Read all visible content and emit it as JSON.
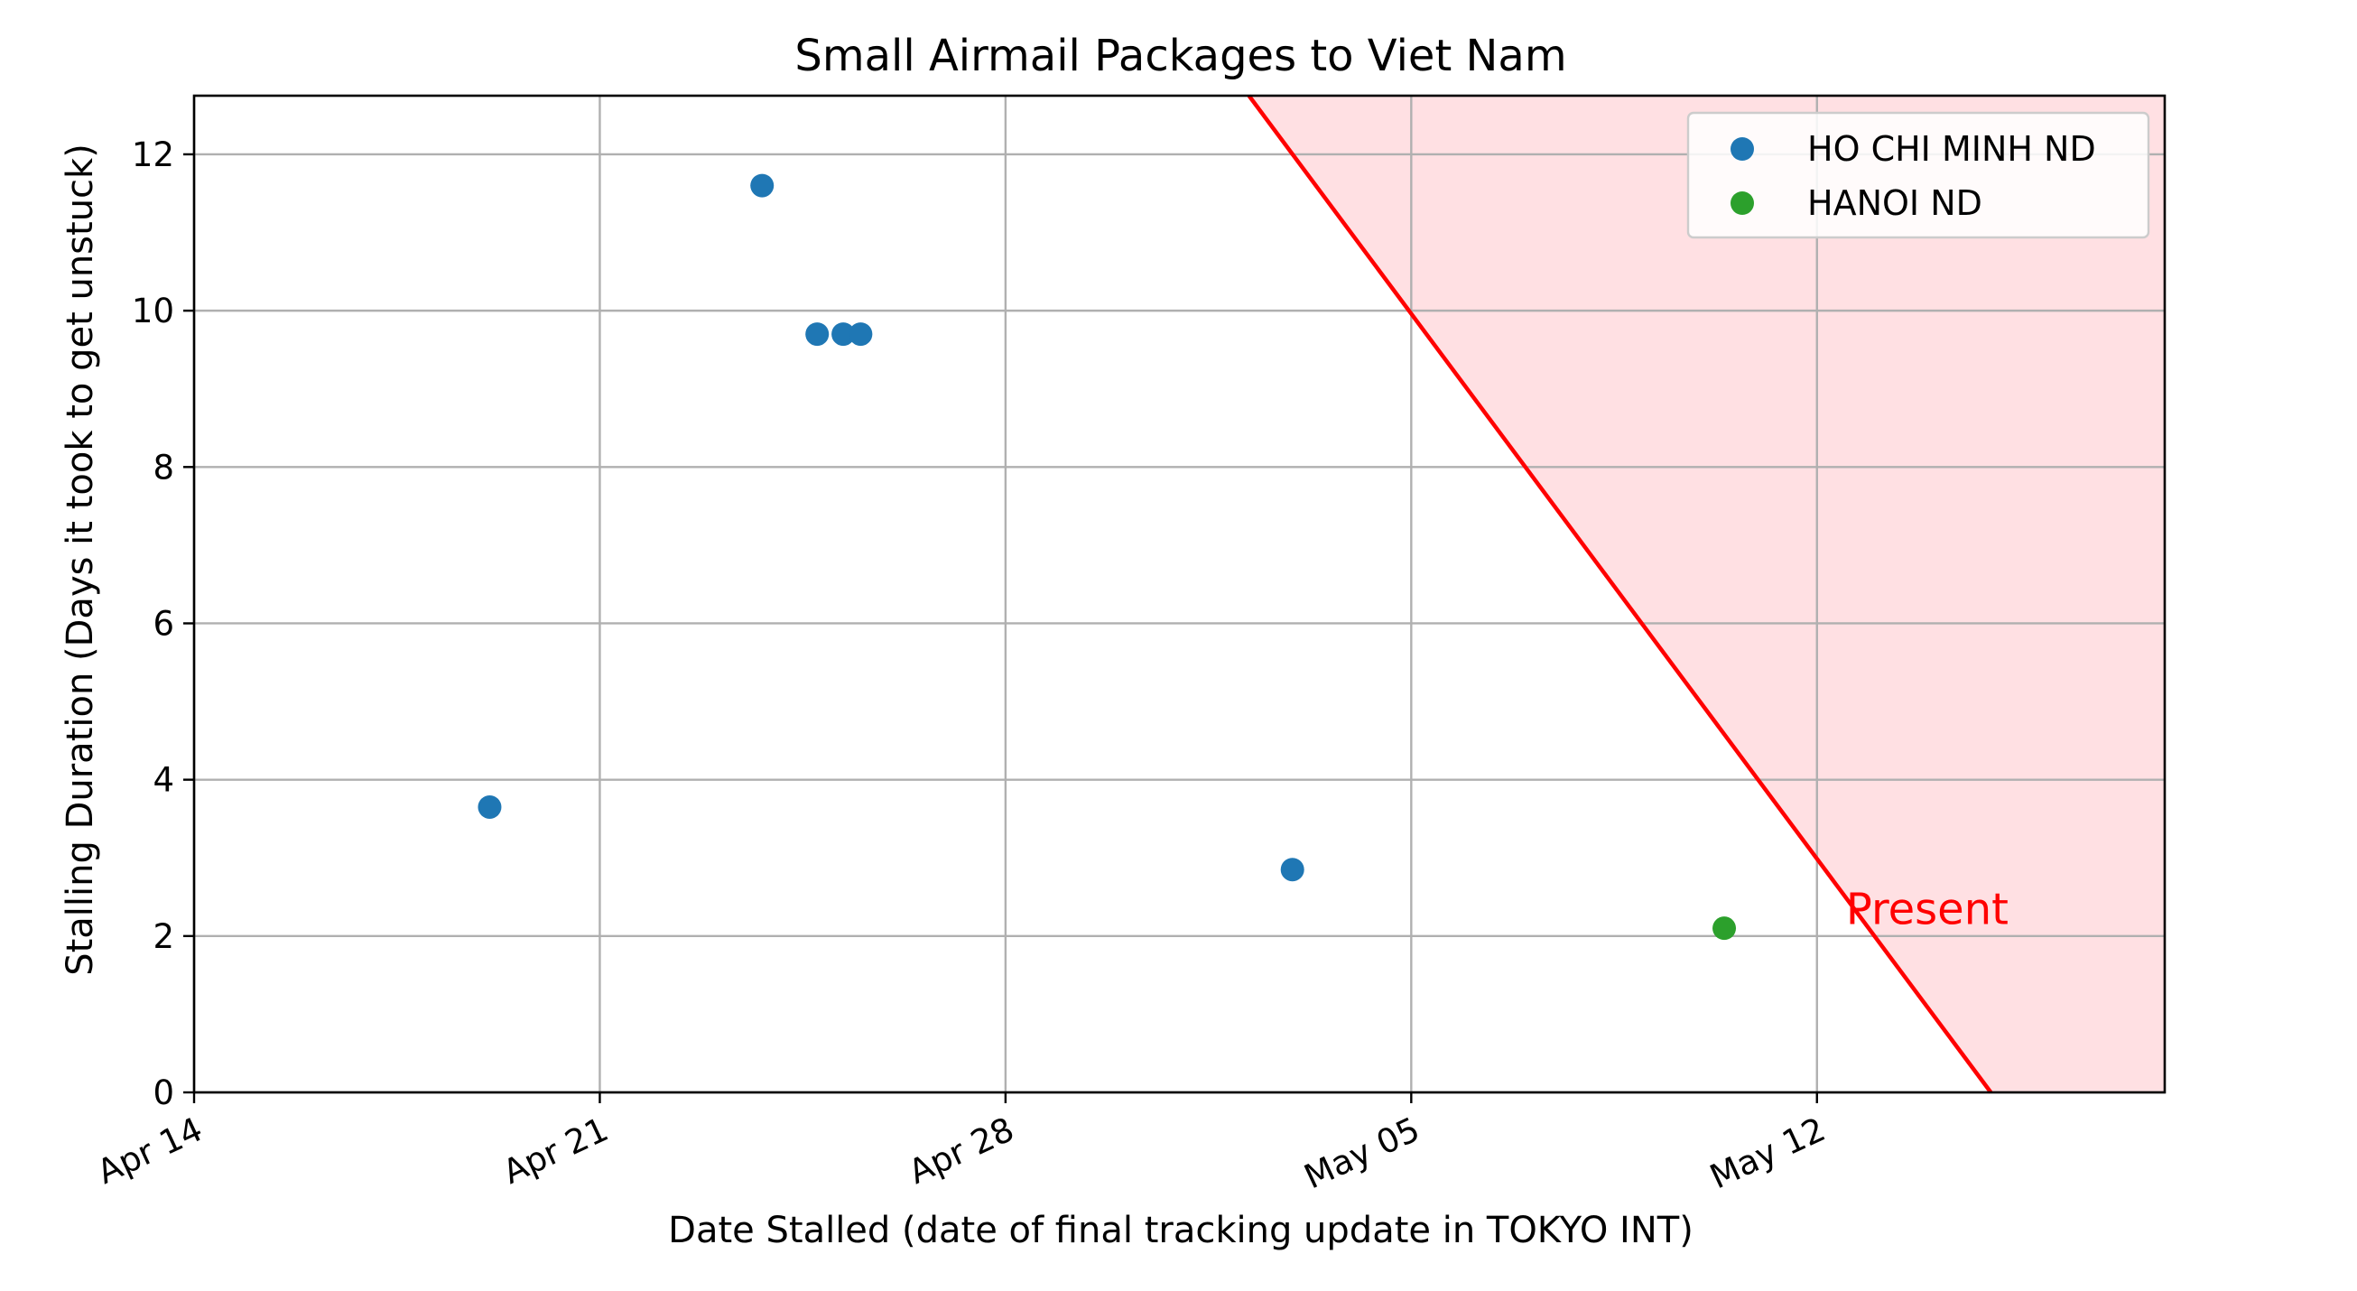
{
  "chart_data": {
    "type": "scatter",
    "title": "Small Airmail Packages to Viet Nam",
    "xlabel": "Date Stalled (date of final tracking update in TOKYO INT)",
    "ylabel": "Stalling Duration (Days it took to get unstuck)",
    "x_ticks": [
      {
        "label": "Apr 14",
        "day": 0
      },
      {
        "label": "Apr 21",
        "day": 7
      },
      {
        "label": "Apr 28",
        "day": 14
      },
      {
        "label": "May 05",
        "day": 21
      },
      {
        "label": "May 12",
        "day": 28
      }
    ],
    "xlim_days": [
      0,
      34
    ],
    "ylim": [
      0,
      12.75
    ],
    "y_ticks": [
      0,
      2,
      4,
      6,
      8,
      10,
      12
    ],
    "grid": true,
    "legend_position": "top-right",
    "series": [
      {
        "name": "HO CHI MINH ND",
        "color": "#1f77b4",
        "points": [
          {
            "day": 5.1,
            "value": 3.65
          },
          {
            "day": 9.8,
            "value": 11.6
          },
          {
            "day": 10.75,
            "value": 9.7
          },
          {
            "day": 11.2,
            "value": 9.7
          },
          {
            "day": 11.5,
            "value": 9.7
          },
          {
            "day": 18.95,
            "value": 2.85
          }
        ]
      },
      {
        "name": "HANOI ND",
        "color": "#2ca02c",
        "points": [
          {
            "day": 26.4,
            "value": 2.1
          }
        ]
      }
    ],
    "present_line": {
      "color": "#ff0000",
      "fill_color": "#ffe0e3",
      "label": "Present",
      "start": {
        "day": 18.2,
        "value": 12.75
      },
      "end": {
        "day": 31.0,
        "value": 0
      }
    },
    "annotation": {
      "text": "Present",
      "day": 28.5,
      "value": 2.35
    }
  }
}
